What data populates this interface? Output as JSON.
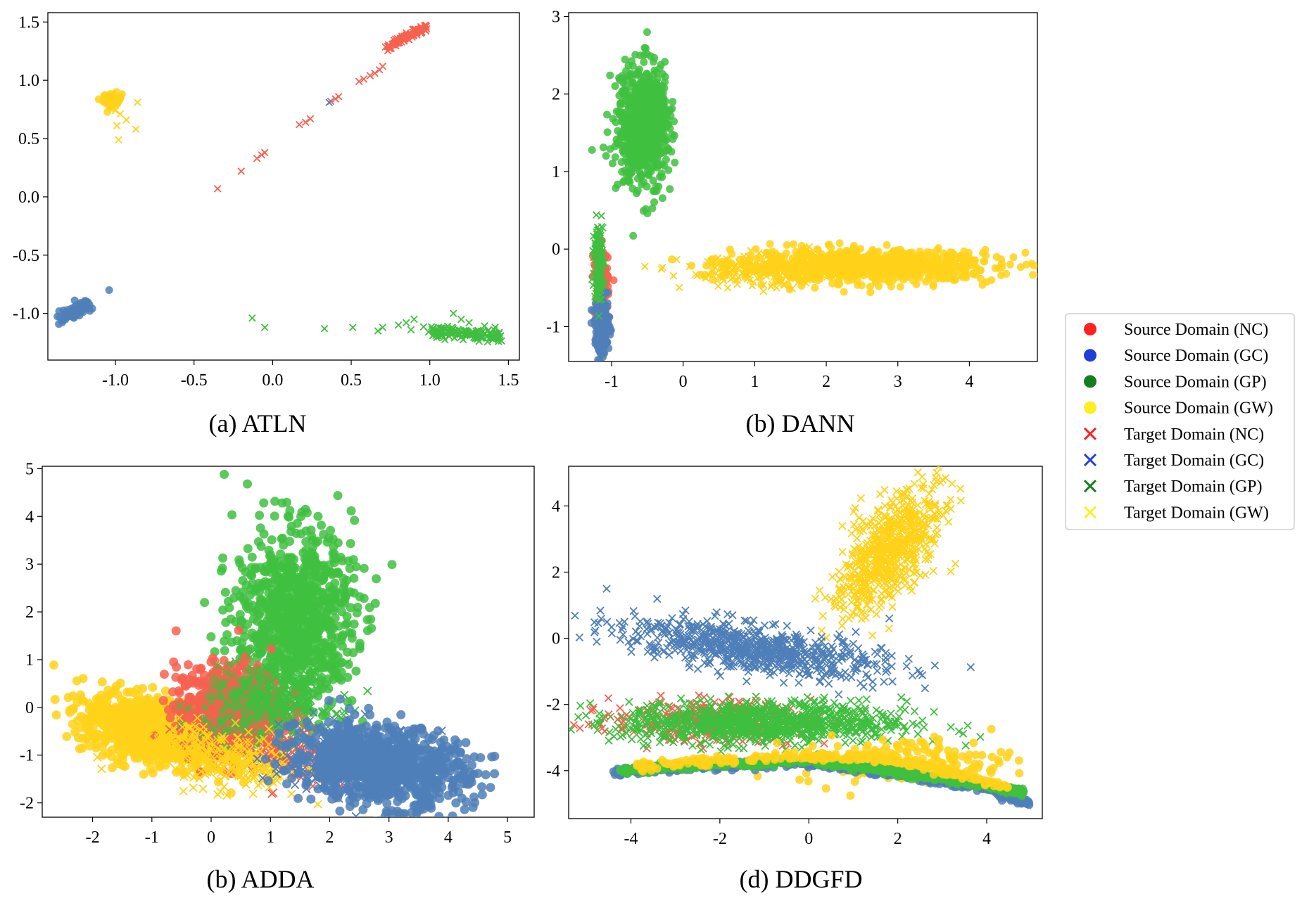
{
  "legend": {
    "items": [
      {
        "label": "Source Domain (NC)",
        "color": "#ff2020",
        "marker": "circle"
      },
      {
        "label": "Source Domain (GC)",
        "color": "#1f3fd8",
        "marker": "circle"
      },
      {
        "label": "Source Domain (GP)",
        "color": "#157f1f",
        "marker": "circle"
      },
      {
        "label": "Source Domain (GW)",
        "color": "#ffee22",
        "marker": "circle"
      },
      {
        "label": "Target Domain (NC)",
        "color": "#ff2020",
        "marker": "x"
      },
      {
        "label": "Target Domain (GC)",
        "color": "#1f3fd8",
        "marker": "x"
      },
      {
        "label": "Target Domain (GP)",
        "color": "#157f1f",
        "marker": "x"
      },
      {
        "label": "Target Domain (GW)",
        "color": "#ffee22",
        "marker": "x"
      }
    ]
  },
  "colors": {
    "nc": "#f8604f",
    "gc": "#4f7fb8",
    "gp": "#3fbf3f",
    "gw": "#ffd21a"
  },
  "chart_data": [
    {
      "type": "scatter",
      "id": "atln",
      "title": "(a) ATLN",
      "xlim": [
        -1.43,
        1.57
      ],
      "ylim": [
        -1.4,
        1.58
      ],
      "xticks": [
        "-1.0",
        "-0.5",
        "0.0",
        "0.5",
        "1.0",
        "1.5"
      ],
      "yticks": [
        "1.5",
        "1.0",
        "0.5",
        "0.0",
        "-0.5",
        "-1.0"
      ],
      "clusters": [
        {
          "cls": "nc",
          "marker": "x",
          "n": 110,
          "line": [
            0.72,
            1.28,
            0.98,
            1.46
          ],
          "jitter": 0.015
        },
        {
          "cls": "nc",
          "marker": "x",
          "pts": [
            [
              -0.35,
              0.07
            ],
            [
              -0.2,
              0.22
            ],
            [
              -0.1,
              0.33
            ],
            [
              -0.07,
              0.36
            ],
            [
              -0.05,
              0.38
            ],
            [
              0.17,
              0.62
            ],
            [
              0.21,
              0.64
            ],
            [
              0.24,
              0.67
            ],
            [
              0.37,
              0.82
            ],
            [
              0.4,
              0.84
            ],
            [
              0.42,
              0.86
            ],
            [
              0.55,
              0.99
            ],
            [
              0.58,
              1.01
            ],
            [
              0.62,
              1.04
            ],
            [
              0.65,
              1.06
            ],
            [
              0.68,
              1.09
            ],
            [
              0.7,
              1.12
            ]
          ]
        },
        {
          "cls": "gc",
          "marker": "circle",
          "n": 70,
          "line": [
            -1.33,
            -1.03,
            -1.17,
            -0.93
          ],
          "jitter": 0.025
        },
        {
          "cls": "gc",
          "marker": "circle",
          "pts": [
            [
              -1.04,
              -0.8
            ]
          ]
        },
        {
          "cls": "gc",
          "marker": "x",
          "pts": [
            [
              0.36,
              0.81
            ]
          ]
        },
        {
          "cls": "gw",
          "marker": "circle",
          "n": 60,
          "center": [
            -1.02,
            0.83
          ],
          "spread": [
            0.03,
            0.03
          ]
        },
        {
          "cls": "gw",
          "marker": "x",
          "pts": [
            [
              -0.99,
              0.61
            ],
            [
              -0.97,
              0.71
            ],
            [
              -0.93,
              0.66
            ],
            [
              -0.87,
              0.58
            ],
            [
              -0.86,
              0.81
            ],
            [
              -0.98,
              0.49
            ],
            [
              -1.0,
              0.74
            ]
          ]
        },
        {
          "cls": "gp",
          "marker": "x",
          "n": 130,
          "line": [
            1.0,
            -1.14,
            1.44,
            -1.2
          ],
          "jitter": 0.025
        },
        {
          "cls": "gp",
          "marker": "x",
          "pts": [
            [
              -0.13,
              -1.04
            ],
            [
              -0.05,
              -1.12
            ],
            [
              0.33,
              -1.13
            ],
            [
              0.51,
              -1.12
            ],
            [
              0.67,
              -1.15
            ],
            [
              0.7,
              -1.12
            ],
            [
              0.8,
              -1.1
            ],
            [
              0.85,
              -1.08
            ],
            [
              0.88,
              -1.14
            ],
            [
              0.9,
              -1.05
            ],
            [
              1.15,
              -1.0
            ],
            [
              1.2,
              -1.05
            ],
            [
              1.25,
              -1.08
            ]
          ]
        }
      ]
    },
    {
      "type": "scatter",
      "id": "dann",
      "title": "(b) DANN",
      "xlim": [
        -1.6,
        4.95
      ],
      "ylim": [
        -1.45,
        3.05
      ],
      "xticks": [
        "-1",
        "0",
        "1",
        "2",
        "3",
        "4"
      ],
      "yticks": [
        "3",
        "2",
        "1",
        "0",
        "-1"
      ],
      "clusters": [
        {
          "cls": "gp",
          "marker": "circle",
          "n": 700,
          "center": [
            -0.55,
            1.6
          ],
          "spread": [
            0.18,
            0.38
          ]
        },
        {
          "cls": "gw",
          "marker": "circle",
          "n": 900,
          "center": [
            2.55,
            -0.22
          ],
          "spread": [
            0.9,
            0.1
          ]
        },
        {
          "cls": "gw",
          "marker": "x",
          "n": 180,
          "center": [
            1.1,
            -0.3
          ],
          "spread": [
            0.55,
            0.1
          ]
        },
        {
          "cls": "nc",
          "marker": "circle",
          "n": 180,
          "center": [
            -1.15,
            -0.42
          ],
          "spread": [
            0.05,
            0.22
          ]
        },
        {
          "cls": "gc",
          "marker": "circle",
          "n": 260,
          "center": [
            -1.13,
            -1.0
          ],
          "spread": [
            0.05,
            0.18
          ]
        },
        {
          "cls": "gp",
          "marker": "x",
          "n": 160,
          "center": [
            -1.18,
            -0.15
          ],
          "spread": [
            0.03,
            0.25
          ]
        }
      ]
    },
    {
      "type": "scatter",
      "id": "adda",
      "title": "(b) ADDA",
      "xlim": [
        -2.85,
        5.45
      ],
      "ylim": [
        -2.3,
        5.05
      ],
      "xticks": [
        "-2",
        "-1",
        "0",
        "1",
        "2",
        "3",
        "4",
        "5"
      ],
      "yticks": [
        "5",
        "4",
        "3",
        "2",
        "1",
        "0",
        "-1",
        "-2"
      ],
      "clusters": [
        {
          "cls": "gp",
          "marker": "circle",
          "n": 900,
          "center": [
            1.4,
            1.85
          ],
          "spread": [
            0.5,
            0.95
          ]
        },
        {
          "cls": "gw",
          "marker": "circle",
          "n": 800,
          "center": [
            -1.0,
            -0.5
          ],
          "spread": [
            0.6,
            0.35
          ],
          "rot": -0.35
        },
        {
          "cls": "nc",
          "marker": "circle",
          "n": 600,
          "center": [
            0.3,
            0.0
          ],
          "spread": [
            0.45,
            0.45
          ]
        },
        {
          "cls": "nc",
          "marker": "x",
          "n": 250,
          "center": [
            1.0,
            -0.8
          ],
          "spread": [
            0.6,
            0.3
          ],
          "rot": -0.35
        },
        {
          "cls": "gp",
          "marker": "x",
          "n": 350,
          "center": [
            1.0,
            0.1
          ],
          "spread": [
            0.55,
            0.4
          ]
        },
        {
          "cls": "gw",
          "marker": "x",
          "n": 300,
          "center": [
            0.1,
            -1.05
          ],
          "spread": [
            0.8,
            0.3
          ],
          "rot": -0.3
        },
        {
          "cls": "gc",
          "marker": "circle",
          "n": 900,
          "center": [
            2.85,
            -1.2
          ],
          "spread": [
            0.75,
            0.4
          ],
          "rot": -0.2
        },
        {
          "cls": "gc",
          "marker": "x",
          "n": 250,
          "center": [
            2.4,
            -1.1
          ],
          "spread": [
            0.6,
            0.35
          ]
        }
      ]
    },
    {
      "type": "scatter",
      "id": "ddgfd",
      "title": "(d) DDGFD",
      "xlim": [
        -5.4,
        5.25
      ],
      "ylim": [
        -5.45,
        5.2
      ],
      "xticks": [
        "-4",
        "-2",
        "0",
        "2",
        "4"
      ],
      "yticks": [
        "4",
        "2",
        "0",
        "-2",
        "-4"
      ],
      "clusters": [
        {
          "cls": "gw",
          "marker": "x",
          "n": 650,
          "center": [
            1.8,
            2.6
          ],
          "spread": [
            0.42,
            1.0
          ],
          "rot": -0.45
        },
        {
          "cls": "gc",
          "marker": "x",
          "n": 700,
          "center": [
            -1.3,
            -0.3
          ],
          "spread": [
            1.5,
            0.35
          ],
          "rot": -0.2
        },
        {
          "cls": "nc",
          "marker": "x",
          "n": 320,
          "center": [
            -2.2,
            -2.5
          ],
          "spread": [
            1.1,
            0.3
          ]
        },
        {
          "cls": "gp",
          "marker": "x",
          "n": 900,
          "center": [
            -1.0,
            -2.55
          ],
          "spread": [
            1.6,
            0.32
          ]
        },
        {
          "cls": "gw",
          "marker": "circle",
          "n": 160,
          "center": [
            2.2,
            -3.7
          ],
          "spread": [
            1.2,
            0.35
          ]
        },
        {
          "cls": "gc",
          "marker": "circle",
          "n": 500,
          "curve": [
            [
              -4.4,
              -4.05
            ],
            [
              -2.0,
              -3.85
            ],
            [
              0.0,
              -3.75
            ],
            [
              2.0,
              -4.1
            ],
            [
              4.0,
              -4.5
            ],
            [
              4.95,
              -5.0
            ]
          ],
          "jitter": 0.06
        },
        {
          "cls": "gp",
          "marker": "circle",
          "n": 550,
          "curve": [
            [
              -4.3,
              -4.0
            ],
            [
              -2.0,
              -3.8
            ],
            [
              0.0,
              -3.7
            ],
            [
              2.0,
              -4.05
            ],
            [
              4.0,
              -4.45
            ],
            [
              4.85,
              -4.65
            ]
          ],
          "jitter": 0.05
        },
        {
          "cls": "gw",
          "marker": "circle",
          "n": 250,
          "curve": [
            [
              -4.0,
              -3.9
            ],
            [
              -2.0,
              -3.7
            ],
            [
              0.0,
              -3.55
            ],
            [
              1.5,
              -3.6
            ],
            [
              3.0,
              -4.0
            ],
            [
              4.5,
              -4.5
            ]
          ],
          "jitter": 0.07
        },
        {
          "cls": "nc",
          "marker": "x",
          "pts": [
            [
              -4.95,
              -2.6
            ],
            [
              -4.65,
              -2.72
            ],
            [
              -4.5,
              -2.3
            ],
            [
              -4.3,
              -2.45
            ]
          ]
        }
      ]
    }
  ]
}
